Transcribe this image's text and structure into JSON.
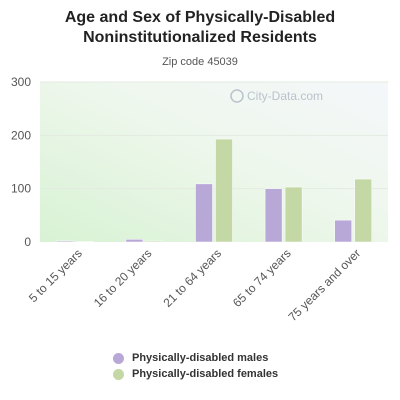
{
  "chart_data": {
    "type": "bar",
    "title_lines": [
      "Age and Sex of Physically-Disabled",
      "Noninstitutionalized Residents"
    ],
    "subtitle": "Zip code 45039",
    "watermark": "City-Data.com",
    "categories": [
      "5 to 15 years",
      "16 to 20 years",
      "21 to 64 years",
      "65 to 74 years",
      "75 years and over"
    ],
    "series": [
      {
        "name": "Physically-disabled males",
        "color": "#b8a8d8",
        "values": [
          1,
          5,
          109,
          100,
          41
        ]
      },
      {
        "name": "Physically-disabled females",
        "color": "#c3d8a4",
        "values": [
          0,
          1,
          193,
          103,
          118
        ]
      }
    ],
    "yticks": [
      0,
      100,
      200,
      300
    ],
    "ylim": [
      0,
      300
    ],
    "grid": true,
    "legend_position": "bottom"
  }
}
